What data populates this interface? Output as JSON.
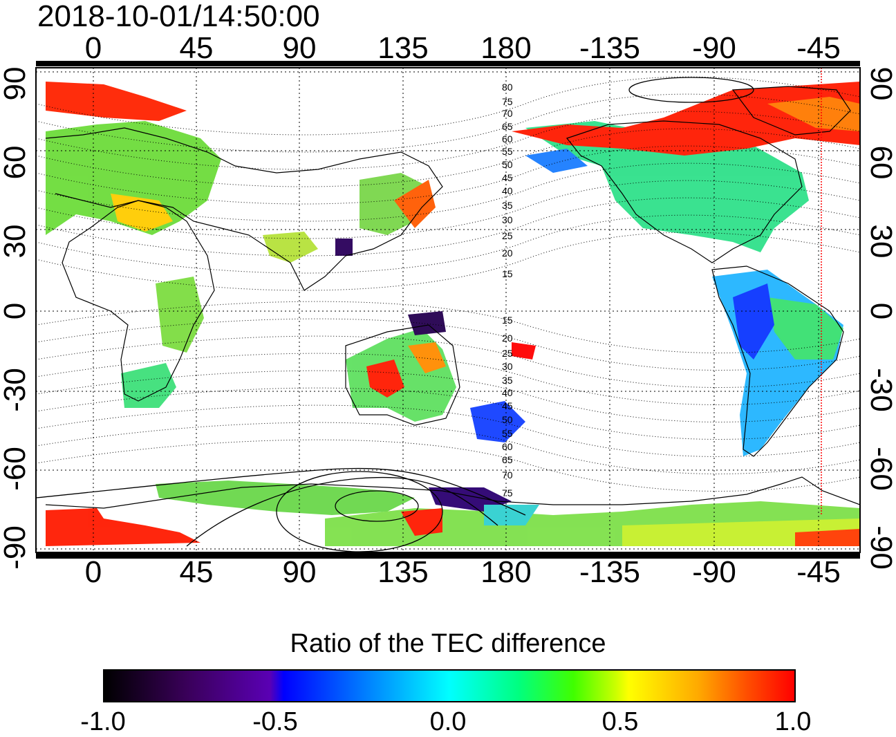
{
  "title": "2018-10-01/14:50:00",
  "lon_ticks": [
    "0",
    "45",
    "90",
    "135",
    "180",
    "-135",
    "-90",
    "-45"
  ],
  "lat_ticks_left": [
    "90",
    "60",
    "30",
    "0",
    "-30",
    "-60",
    "-90"
  ],
  "lat_ticks_right": [
    "90",
    "60",
    "30",
    "0",
    "-30",
    "-60",
    "-90"
  ],
  "mlat_labels_north": [
    "80",
    "75",
    "70",
    "65",
    "60",
    "55",
    "50",
    "45",
    "40",
    "35",
    "30",
    "25",
    "20",
    "15"
  ],
  "mlat_labels_south": [
    "15",
    "20",
    "25",
    "30",
    "35",
    "40",
    "45",
    "50",
    "55",
    "60",
    "65",
    "70",
    "75"
  ],
  "colorbar": {
    "title": "Ratio of the TEC difference",
    "ticks": [
      "-1.0",
      "-0.5",
      "0.0",
      "0.5",
      "1.0"
    ]
  },
  "colors": {
    "negative_strong": "#000000",
    "negative": "#0000ff",
    "zero": "#00ffff",
    "positive": "#ffff00",
    "positive_strong": "#ff0000"
  }
}
